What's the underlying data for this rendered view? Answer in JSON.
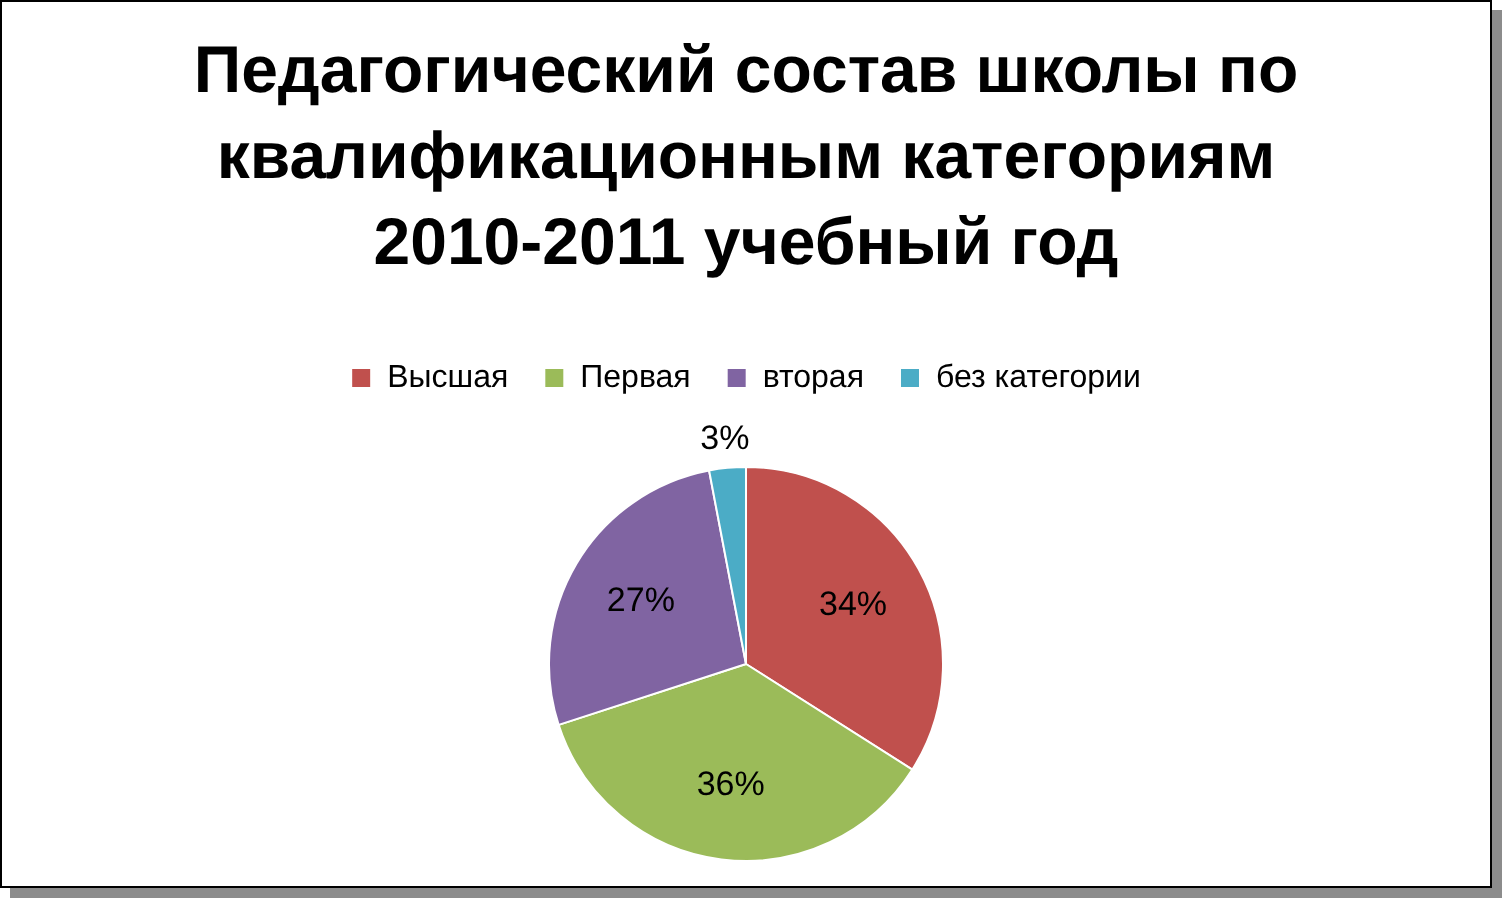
{
  "chart_data": {
    "type": "pie",
    "title": "Педагогический состав школы по квалификационным категориям 2010-2011 учебный год",
    "categories": [
      "Высшая",
      "Первая",
      "вторая",
      "без категории"
    ],
    "values": [
      34,
      36,
      27,
      3
    ],
    "colors": [
      "#c0504d",
      "#9bbb59",
      "#8064a2",
      "#4bacc6"
    ],
    "value_labels": [
      "34%",
      "36%",
      "27%",
      "3%"
    ],
    "legend": "top"
  }
}
